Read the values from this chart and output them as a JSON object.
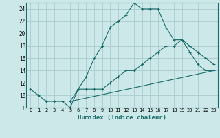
{
  "title": "",
  "xlabel": "Humidex (Indice chaleur)",
  "bg_color": "#cce8e8",
  "grid_color": "#aacccc",
  "line_color": "#1a6b6b",
  "spine_color": "#1a6b6b",
  "xlim": [
    -0.5,
    23.5
  ],
  "ylim": [
    8,
    25
  ],
  "xticks": [
    0,
    1,
    2,
    3,
    4,
    5,
    6,
    7,
    8,
    9,
    10,
    11,
    12,
    13,
    14,
    15,
    16,
    17,
    18,
    19,
    20,
    21,
    22,
    23
  ],
  "yticks": [
    8,
    10,
    12,
    14,
    16,
    18,
    20,
    22,
    24
  ],
  "line1_x": [
    0,
    1,
    2,
    3,
    4,
    5,
    6,
    7,
    8,
    9,
    10,
    11,
    12,
    13,
    14,
    15,
    16,
    17,
    18,
    19,
    20,
    21,
    22,
    23
  ],
  "line1_y": [
    11,
    10,
    9,
    9,
    9,
    8,
    11,
    13,
    16,
    18,
    21,
    22,
    23,
    25,
    24,
    24,
    24,
    21,
    19,
    19,
    17,
    15,
    14,
    14
  ],
  "line2_x": [
    5,
    6,
    7,
    8,
    9,
    10,
    11,
    12,
    13,
    14,
    15,
    16,
    17,
    18,
    19,
    20,
    21,
    22,
    23
  ],
  "line2_y": [
    9,
    11,
    11,
    11,
    11,
    12,
    13,
    14,
    14,
    15,
    16,
    17,
    18,
    18,
    19,
    18,
    17,
    16,
    15
  ],
  "line3_x": [
    5,
    23
  ],
  "line3_y": [
    9,
    14
  ],
  "tick_fontsize": 5.0,
  "xlabel_fontsize": 6.5
}
